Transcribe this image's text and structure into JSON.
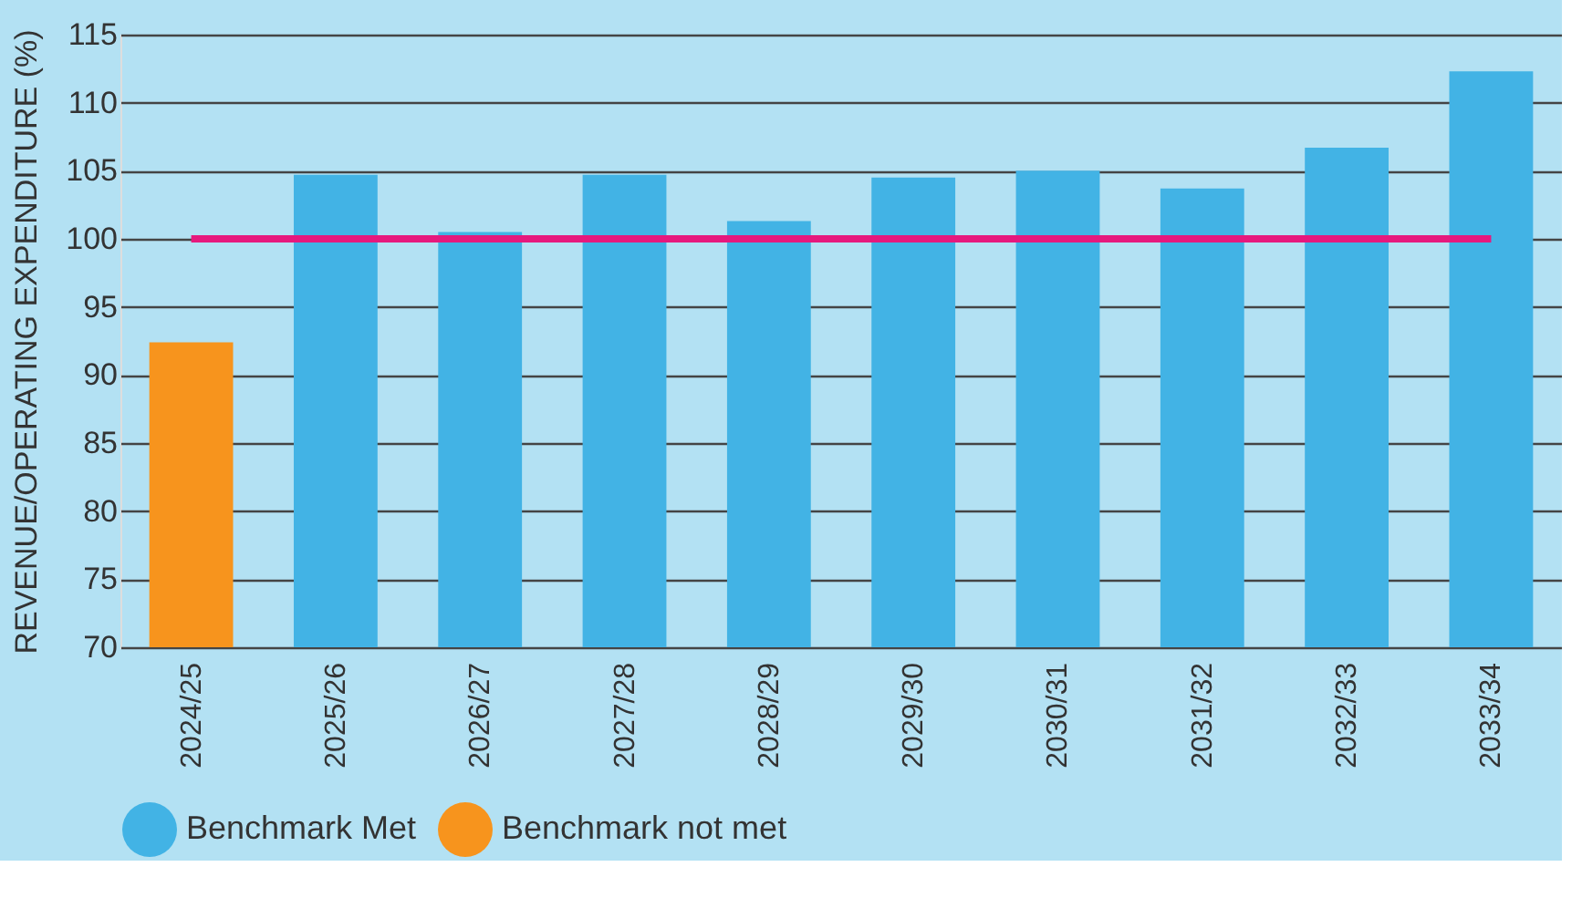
{
  "chart_data": {
    "type": "bar",
    "ylabel": "REVENUE/OPERATING EXPENDITURE (%)",
    "categories": [
      "2024/25",
      "2025/26",
      "2026/27",
      "2027/28",
      "2028/29",
      "2029/30",
      "2030/31",
      "2031/32",
      "2032/33",
      "2033/34"
    ],
    "series": [
      {
        "name": "Benchmark Met",
        "color": "#42b3e5",
        "values": [
          null,
          104.7,
          100.5,
          104.7,
          101.3,
          104.5,
          105.0,
          103.7,
          106.7,
          112.3
        ]
      },
      {
        "name": "Benchmark not met",
        "color": "#f7941d",
        "values": [
          92.4,
          null,
          null,
          null,
          null,
          null,
          null,
          null,
          null,
          null
        ]
      }
    ],
    "ylim": [
      70,
      115
    ],
    "yticks": [
      70,
      75,
      80,
      85,
      90,
      95,
      100,
      105,
      110,
      115
    ],
    "ref_lines": [
      {
        "axis": "y",
        "value": 100,
        "color": "#e6197d",
        "line_style": "solid"
      }
    ],
    "grid": "y",
    "legend": "bottom"
  }
}
